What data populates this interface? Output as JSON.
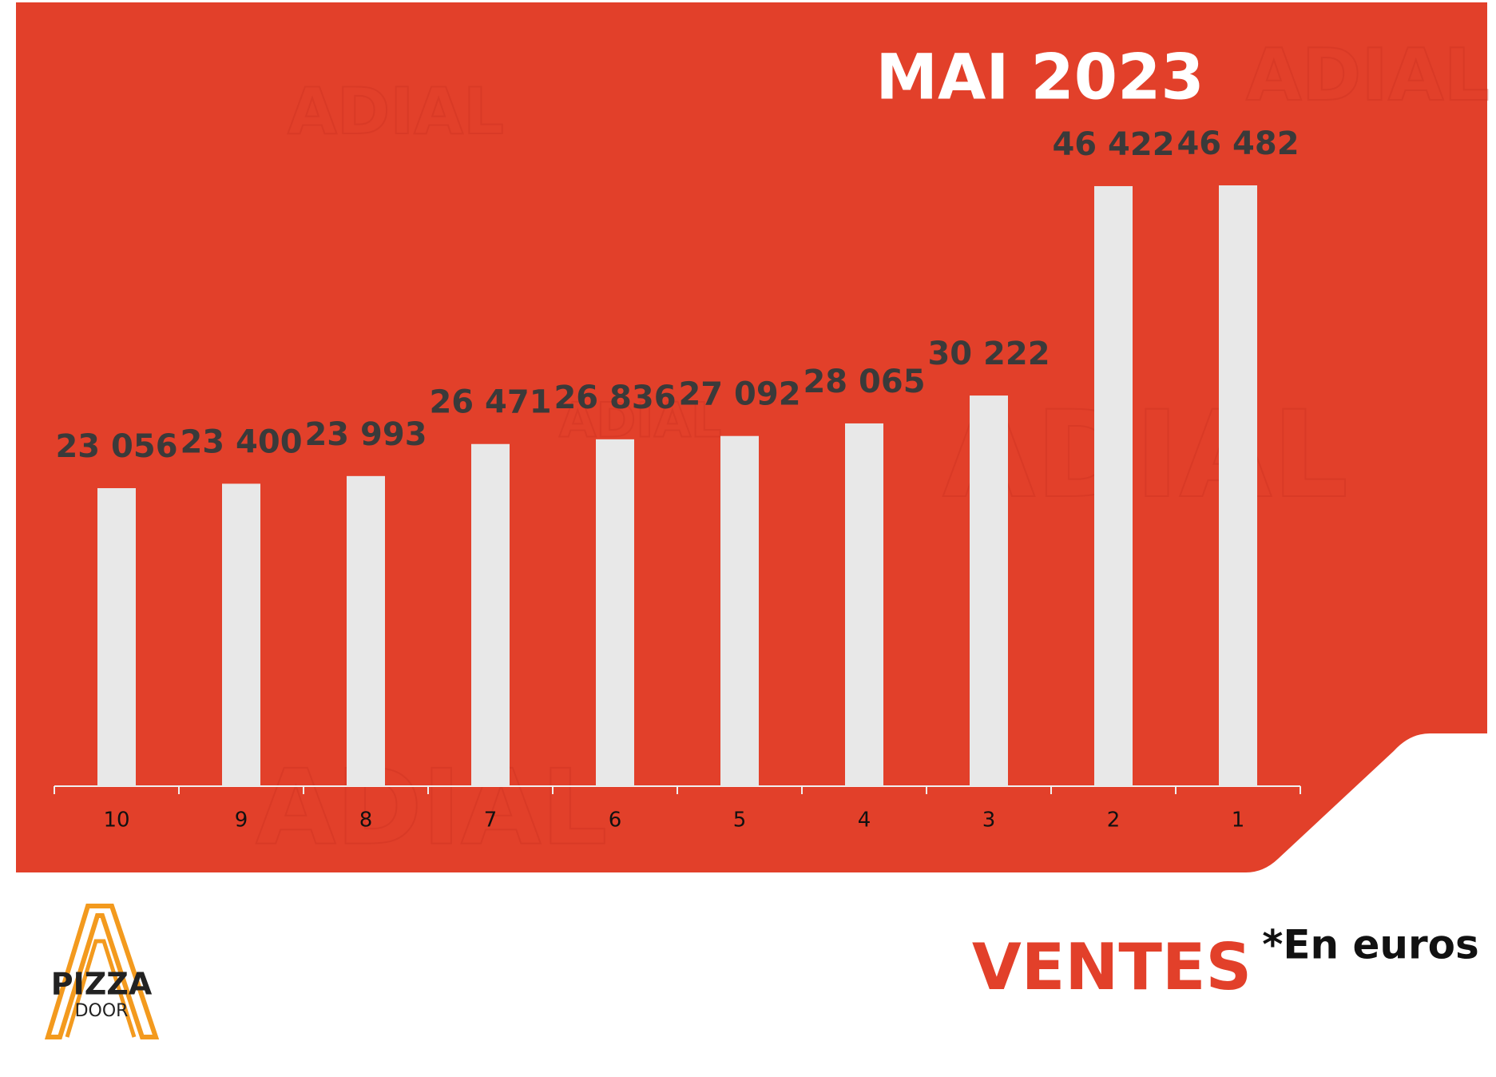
{
  "chart_data": {
    "type": "bar",
    "title": "MAI 2023",
    "categories": [
      "10",
      "9",
      "8",
      "7",
      "6",
      "5",
      "4",
      "3",
      "2",
      "1"
    ],
    "values": [
      23056,
      23400,
      23993,
      26471,
      26836,
      27092,
      28065,
      30222,
      46422,
      46482
    ],
    "value_labels": [
      "23 056",
      "23 400",
      "23 993",
      "26 471",
      "26 836",
      "27 092",
      "28 065",
      "30 222",
      "46 422",
      "46 482"
    ],
    "color": "#e8e8e8"
  },
  "footer": {
    "label": "VENTES",
    "note": "*En euros"
  },
  "logo": {
    "line1": "PIZZA",
    "line2": "DOOR"
  },
  "watermark": "ADIAL"
}
